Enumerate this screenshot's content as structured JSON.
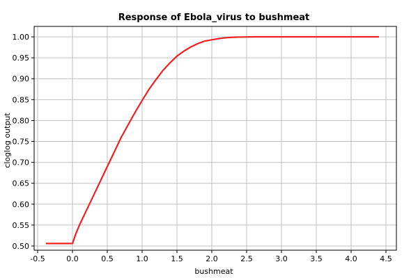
{
  "chart_data": {
    "type": "line",
    "title": "Response of Ebola_virus to bushmeat",
    "xlabel": "bushmeat",
    "ylabel": "cloglog output",
    "xlim": [
      -0.55,
      4.65
    ],
    "ylim": [
      0.49,
      1.025
    ],
    "x_ticks": [
      -0.5,
      0.0,
      0.5,
      1.0,
      1.5,
      2.0,
      2.5,
      3.0,
      3.5,
      4.0,
      4.5
    ],
    "x_tick_labels": [
      "-0.5",
      "0.0",
      "0.5",
      "1.0",
      "1.5",
      "2.0",
      "2.5",
      "3.0",
      "3.5",
      "4.0",
      "4.5"
    ],
    "y_ticks": [
      0.5,
      0.55,
      0.6,
      0.65,
      0.7,
      0.75,
      0.8,
      0.85,
      0.9,
      0.95,
      1.0
    ],
    "y_tick_labels": [
      "0.50",
      "0.55",
      "0.60",
      "0.65",
      "0.70",
      "0.75",
      "0.80",
      "0.85",
      "0.90",
      "0.95",
      "1.00"
    ],
    "grid": true,
    "series_color": "#ee2222",
    "series": [
      {
        "x": [
          -0.38,
          0.0,
          0.05,
          0.1,
          0.2,
          0.3,
          0.4,
          0.5,
          0.6,
          0.7,
          0.8,
          0.9,
          1.0,
          1.1,
          1.2,
          1.3,
          1.4,
          1.5,
          1.6,
          1.7,
          1.8,
          1.9,
          2.0,
          2.1,
          2.2,
          2.3,
          2.4,
          2.5,
          2.6,
          3.0,
          3.5,
          4.0,
          4.4
        ],
        "y": [
          0.506,
          0.506,
          0.53,
          0.55,
          0.585,
          0.62,
          0.655,
          0.69,
          0.725,
          0.76,
          0.79,
          0.82,
          0.848,
          0.875,
          0.898,
          0.92,
          0.938,
          0.954,
          0.966,
          0.976,
          0.984,
          0.99,
          0.993,
          0.996,
          0.998,
          0.999,
          0.9995,
          0.9998,
          1.0,
          1.0,
          1.0,
          1.0,
          1.0
        ]
      }
    ]
  }
}
